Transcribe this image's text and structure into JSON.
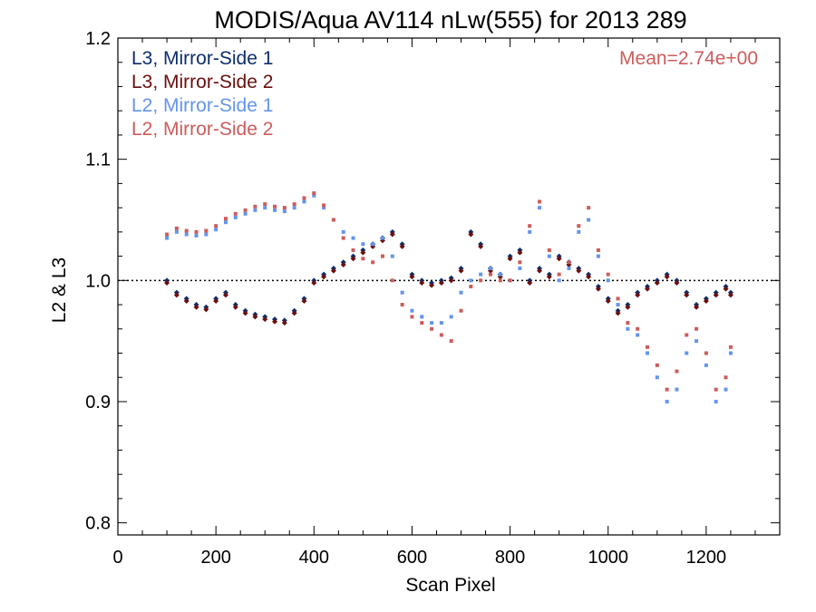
{
  "chart_data": {
    "type": "scatter",
    "title": "MODIS/Aqua AV114 nLw(555) for 2013 289",
    "xlabel": "Scan Pixel",
    "ylabel": "L2 & L3",
    "xlim": [
      0,
      1350
    ],
    "ylim": [
      0.79,
      1.2
    ],
    "xticks": [
      0,
      200,
      400,
      600,
      800,
      1000,
      1200
    ],
    "xtick_labels": [
      "0",
      "200",
      "400",
      "600",
      "800",
      "1000",
      "1200"
    ],
    "yticks": [
      0.8,
      0.9,
      1.0,
      1.1,
      1.2
    ],
    "ytick_labels": [
      "0.8",
      "0.9",
      "1.0",
      "1.1",
      "1.2"
    ],
    "reference_line": 1.0,
    "annotation": "Mean=2.74e+00",
    "annotation_color": "#cd5c5c",
    "legend_placement": "top-left",
    "series": [
      {
        "name": "L3, Mirror-Side 1",
        "color": "#0d2e6b",
        "marker": "diamond",
        "x": [
          100,
          120,
          140,
          160,
          180,
          200,
          220,
          240,
          260,
          280,
          300,
          320,
          340,
          360,
          380,
          400,
          420,
          440,
          460,
          480,
          500,
          520,
          540,
          560,
          580,
          600,
          620,
          640,
          660,
          680,
          700,
          720,
          740,
          760,
          780,
          800,
          820,
          840,
          860,
          880,
          900,
          920,
          940,
          960,
          980,
          1000,
          1020,
          1040,
          1060,
          1080,
          1100,
          1120,
          1140,
          1160,
          1180,
          1200,
          1220,
          1240,
          1250
        ],
        "y": [
          1.0,
          0.99,
          0.985,
          0.98,
          0.978,
          0.985,
          0.99,
          0.98,
          0.975,
          0.972,
          0.97,
          0.968,
          0.967,
          0.975,
          0.985,
          1.0,
          1.005,
          1.01,
          1.015,
          1.02,
          1.025,
          1.03,
          1.035,
          1.04,
          1.03,
          1.005,
          1.0,
          0.998,
          1.0,
          1.002,
          1.01,
          1.04,
          1.03,
          1.01,
          1.005,
          1.02,
          1.025,
          1.0,
          1.01,
          1.005,
          1.02,
          1.015,
          1.01,
          1.005,
          0.995,
          0.985,
          0.975,
          0.98,
          0.99,
          0.995,
          1.0,
          1.005,
          1.0,
          0.99,
          0.98,
          0.985,
          0.99,
          0.995,
          0.99
        ]
      },
      {
        "name": "L3, Mirror-Side 2",
        "color": "#6b0f0f",
        "marker": "diamond",
        "x": [
          100,
          120,
          140,
          160,
          180,
          200,
          220,
          240,
          260,
          280,
          300,
          320,
          340,
          360,
          380,
          400,
          420,
          440,
          460,
          480,
          500,
          520,
          540,
          560,
          580,
          600,
          620,
          640,
          660,
          680,
          700,
          720,
          740,
          760,
          780,
          800,
          820,
          840,
          860,
          880,
          900,
          920,
          940,
          960,
          980,
          1000,
          1020,
          1040,
          1060,
          1080,
          1100,
          1120,
          1140,
          1160,
          1180,
          1200,
          1220,
          1240,
          1250
        ],
        "y": [
          0.998,
          0.988,
          0.983,
          0.978,
          0.976,
          0.983,
          0.988,
          0.978,
          0.973,
          0.97,
          0.968,
          0.966,
          0.965,
          0.973,
          0.983,
          0.998,
          1.003,
          1.008,
          1.013,
          1.018,
          1.023,
          1.028,
          1.033,
          1.038,
          1.028,
          1.003,
          0.998,
          0.996,
          0.998,
          1.0,
          1.008,
          1.038,
          1.028,
          1.008,
          1.003,
          1.018,
          1.023,
          0.998,
          1.008,
          1.003,
          1.018,
          1.013,
          1.008,
          1.003,
          0.993,
          0.983,
          0.973,
          0.978,
          0.988,
          0.993,
          0.998,
          1.003,
          0.998,
          0.988,
          0.978,
          0.983,
          0.988,
          0.993,
          0.988
        ]
      },
      {
        "name": "L2, Mirror-Side 1",
        "color": "#6495ed",
        "marker": "square",
        "x": [
          100,
          120,
          140,
          160,
          180,
          200,
          220,
          240,
          260,
          280,
          300,
          320,
          340,
          360,
          380,
          400,
          420,
          440,
          460,
          480,
          500,
          520,
          540,
          560,
          580,
          600,
          620,
          640,
          660,
          680,
          700,
          720,
          740,
          760,
          780,
          800,
          820,
          840,
          860,
          880,
          900,
          920,
          940,
          960,
          980,
          1000,
          1020,
          1040,
          1060,
          1080,
          1100,
          1120,
          1140,
          1160,
          1180,
          1200,
          1220,
          1240,
          1250
        ],
        "y": [
          1.035,
          1.04,
          1.038,
          1.037,
          1.038,
          1.042,
          1.048,
          1.052,
          1.055,
          1.058,
          1.06,
          1.058,
          1.057,
          1.06,
          1.065,
          1.07,
          1.06,
          1.05,
          1.04,
          1.035,
          1.03,
          1.03,
          1.035,
          1.02,
          0.99,
          0.975,
          0.97,
          0.965,
          0.965,
          0.97,
          0.99,
          1.0,
          1.005,
          1.01,
          1.005,
          1.0,
          1.01,
          1.04,
          1.06,
          1.02,
          1.0,
          1.01,
          1.04,
          1.05,
          1.02,
          1.0,
          0.98,
          0.96,
          0.955,
          0.94,
          0.92,
          0.9,
          0.91,
          0.94,
          0.95,
          0.93,
          0.9,
          0.91,
          0.94
        ]
      },
      {
        "name": "L2, Mirror-Side 2",
        "color": "#cd5c5c",
        "marker": "square",
        "x": [
          100,
          120,
          140,
          160,
          180,
          200,
          220,
          240,
          260,
          280,
          300,
          320,
          340,
          360,
          380,
          400,
          420,
          440,
          460,
          480,
          500,
          520,
          540,
          560,
          580,
          600,
          620,
          640,
          660,
          680,
          700,
          720,
          740,
          760,
          780,
          800,
          820,
          840,
          860,
          880,
          900,
          920,
          940,
          960,
          980,
          1000,
          1020,
          1040,
          1060,
          1080,
          1100,
          1120,
          1140,
          1160,
          1180,
          1200,
          1220,
          1240,
          1250
        ],
        "y": [
          1.038,
          1.043,
          1.041,
          1.04,
          1.041,
          1.045,
          1.051,
          1.055,
          1.058,
          1.061,
          1.063,
          1.061,
          1.06,
          1.063,
          1.068,
          1.072,
          1.062,
          1.05,
          1.035,
          1.025,
          1.018,
          1.015,
          1.02,
          1.0,
          0.98,
          0.97,
          0.965,
          0.96,
          0.955,
          0.95,
          0.975,
          0.995,
          1.0,
          1.005,
          1.0,
          1.0,
          1.015,
          1.045,
          1.065,
          1.025,
          1.005,
          1.015,
          1.045,
          1.06,
          1.025,
          1.005,
          0.985,
          0.965,
          0.96,
          0.945,
          0.93,
          0.91,
          0.925,
          0.955,
          0.96,
          0.94,
          0.91,
          0.92,
          0.945
        ]
      }
    ]
  }
}
